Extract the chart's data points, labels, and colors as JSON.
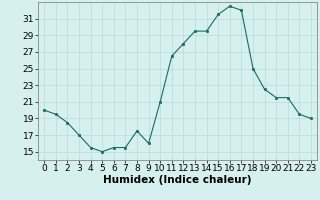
{
  "x": [
    0,
    1,
    2,
    3,
    4,
    5,
    6,
    7,
    8,
    9,
    10,
    11,
    12,
    13,
    14,
    15,
    16,
    17,
    18,
    19,
    20,
    21,
    22,
    23
  ],
  "y": [
    20.0,
    19.5,
    18.5,
    17.0,
    15.5,
    15.0,
    15.5,
    15.5,
    17.5,
    16.0,
    21.0,
    26.5,
    28.0,
    29.5,
    29.5,
    31.5,
    32.5,
    32.0,
    25.0,
    22.5,
    21.5,
    21.5,
    19.5,
    19.0
  ],
  "xlabel": "Humidex (Indice chaleur)",
  "ylim": [
    14,
    33
  ],
  "yticks": [
    15,
    17,
    19,
    21,
    23,
    25,
    27,
    29,
    31
  ],
  "xticks": [
    0,
    1,
    2,
    3,
    4,
    5,
    6,
    7,
    8,
    9,
    10,
    11,
    12,
    13,
    14,
    15,
    16,
    17,
    18,
    19,
    20,
    21,
    22,
    23
  ],
  "line_color": "#1a6b5e",
  "marker_color": "#1a6b5e",
  "bg_color": "#d6f0ef",
  "grid_color": "#b8dbd8",
  "xlabel_fontsize": 7.5,
  "tick_fontsize": 6.5
}
